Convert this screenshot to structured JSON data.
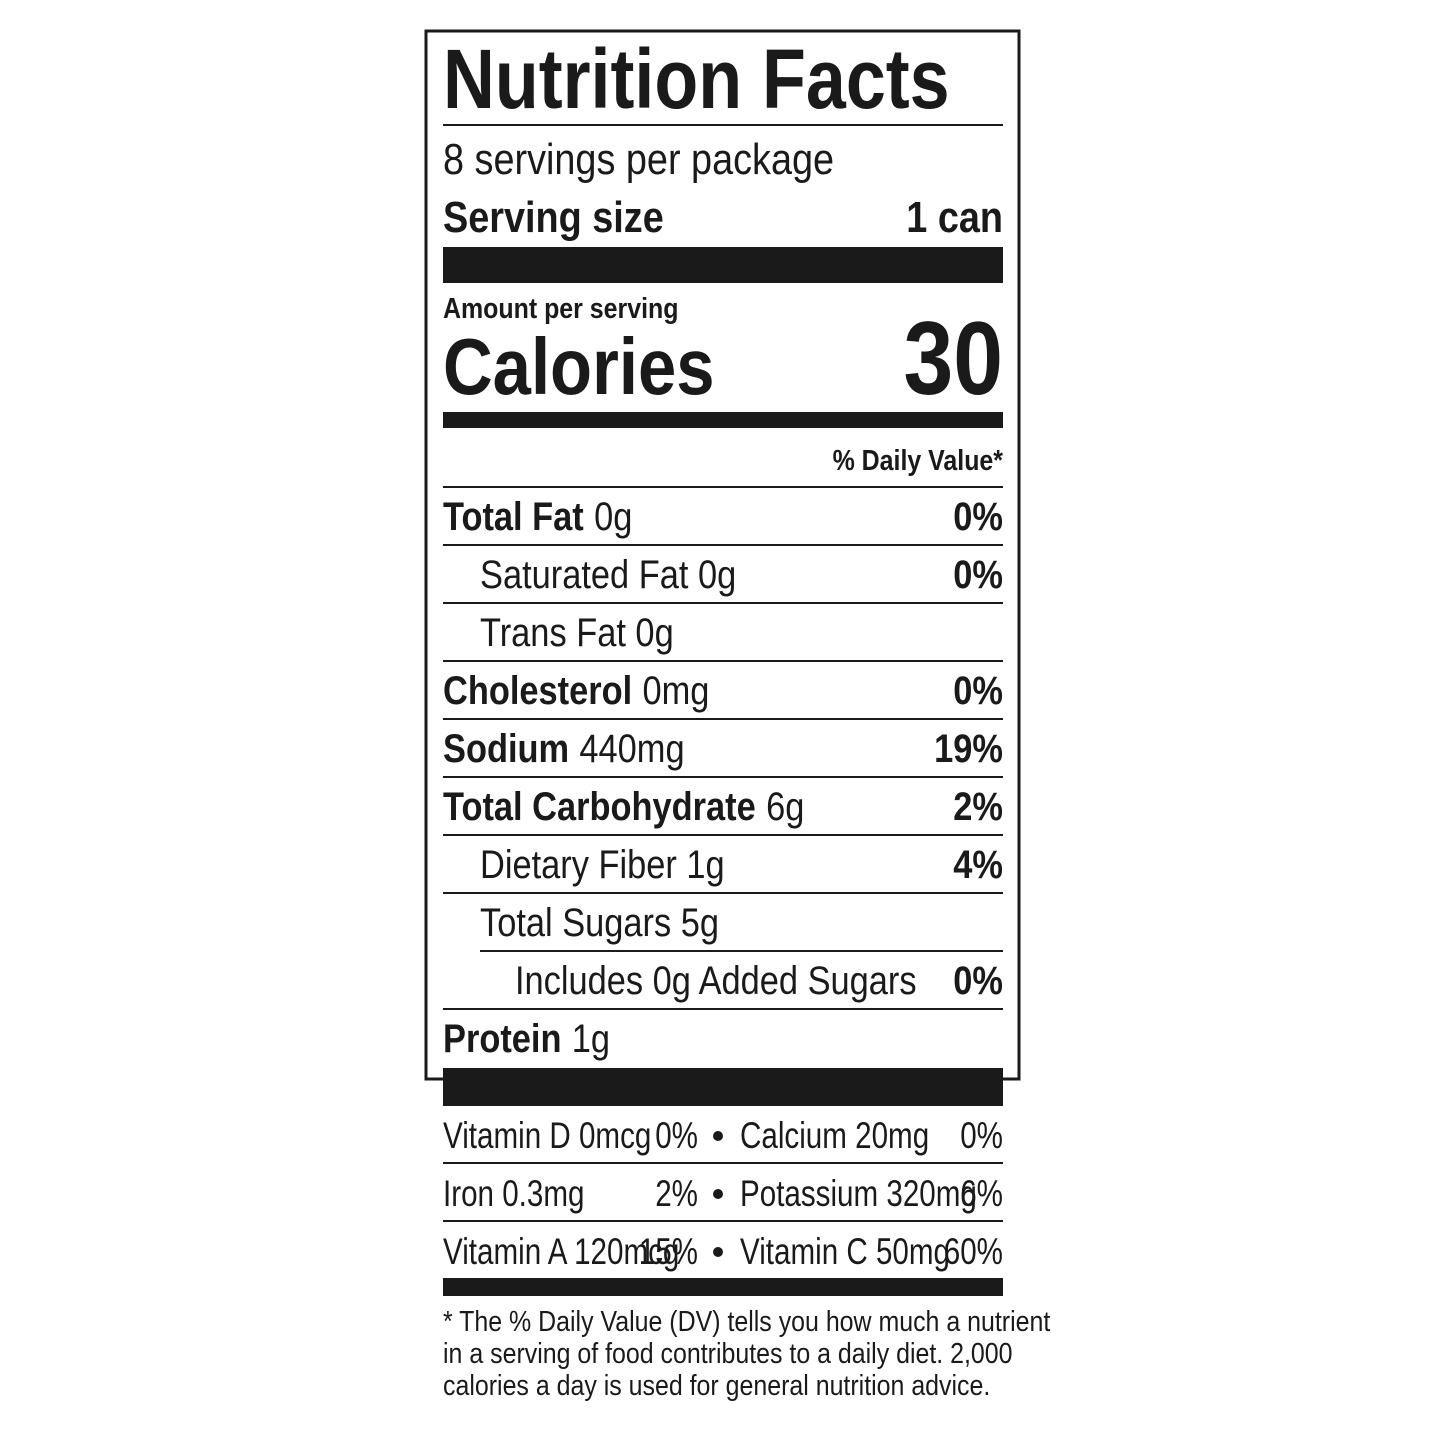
{
  "title": "Nutrition Facts",
  "servings": "8 servings per package",
  "serving_size": {
    "label": "Serving size",
    "value": "1 can"
  },
  "amount_per_serving": "Amount per serving",
  "calories": {
    "label": "Calories",
    "value": 30
  },
  "daily_value_header": "% Daily Value*",
  "nutrients": [
    {
      "name": "Total Fat",
      "amount": "0g",
      "dv": "0%",
      "sub": [
        {
          "name": "Saturated Fat 0g",
          "dv": "0%"
        },
        {
          "name": "Trans Fat 0g"
        }
      ]
    },
    {
      "name": "Cholesterol",
      "amount": "0mg",
      "dv": "0%"
    },
    {
      "name": "Sodium",
      "amount": "440mg",
      "dv": "19%"
    },
    {
      "name": "Total Carbohydrate",
      "amount": "6g",
      "dv": "2%",
      "sub": [
        {
          "name": "Dietary Fiber 1g",
          "dv": "4%"
        },
        {
          "name": "Total Sugars 5g",
          "sub": [
            {
              "name": "Includes 0g Added Sugars",
              "dv": "0%"
            }
          ]
        }
      ]
    },
    {
      "name": "Protein",
      "amount": "1g"
    }
  ],
  "vitamins": [
    [
      {
        "name": "Vitamin D 0mcg",
        "dv": "0%"
      },
      {
        "name": "Calcium 20mg",
        "dv": "0%"
      }
    ],
    [
      {
        "name": "Iron 0.3mg",
        "dv": "2%"
      },
      {
        "name": "Potassium 320mg",
        "dv": "6%"
      }
    ],
    [
      {
        "name": "Vitamin A 120mcg",
        "dv": "15%"
      },
      {
        "name": "Vitamin C 50mg",
        "dv": "60%"
      }
    ]
  ],
  "footnote": [
    "* The % Daily Value (DV) tells you how much a nutrient",
    "in a serving of food contributes to a daily diet. 2,000",
    "calories a day is used for general nutrition advice."
  ]
}
